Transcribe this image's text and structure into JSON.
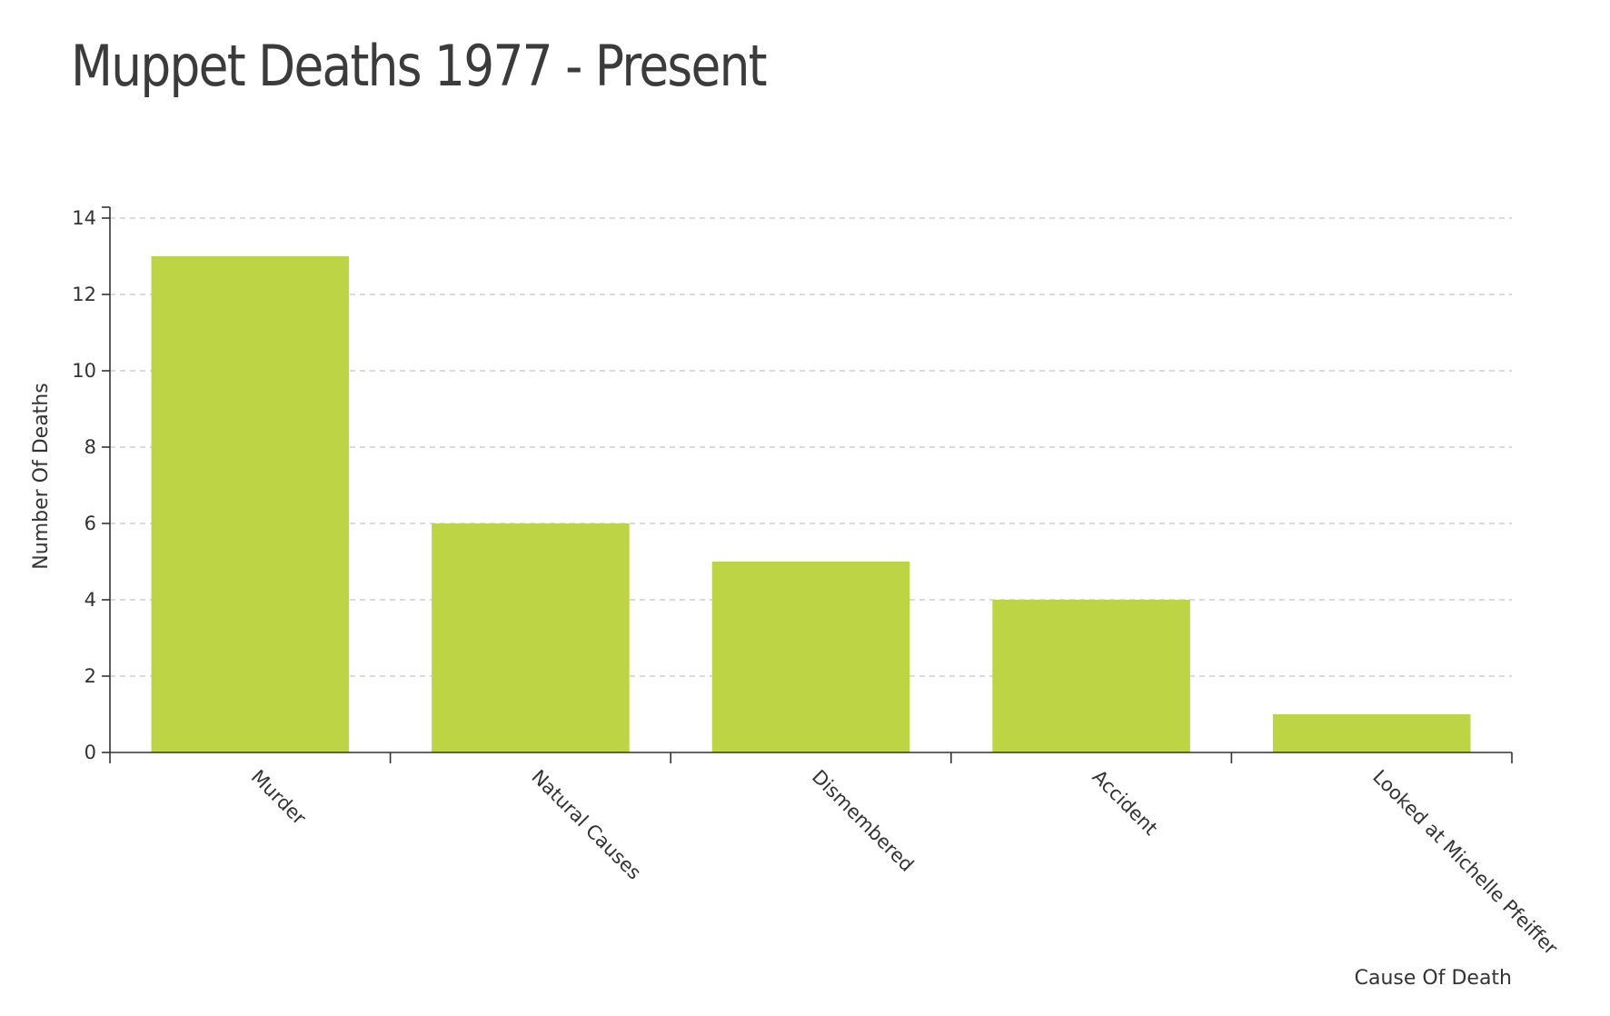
{
  "chart_data": {
    "type": "bar",
    "title": "Muppet Deaths 1977 - Present",
    "xlabel": "Cause Of Death",
    "ylabel": "Number Of Deaths",
    "categories": [
      "Murder",
      "Natural Causes",
      "Dismembered",
      "Accident",
      "Looked at Michelle Pfeiffer"
    ],
    "values": [
      13,
      6,
      5,
      4,
      1
    ],
    "ylim": [
      0,
      14
    ],
    "yticks": [
      0,
      2,
      4,
      6,
      8,
      10,
      12,
      14
    ],
    "grid": true,
    "bar_color": "#bdd544",
    "legend": "none"
  }
}
